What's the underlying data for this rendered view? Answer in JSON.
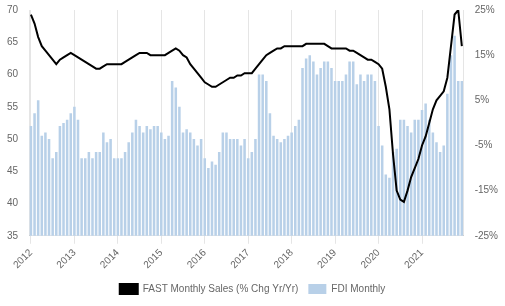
{
  "chart_data": {
    "type": "bar",
    "categories": [
      "2012",
      null,
      null,
      null,
      null,
      null,
      null,
      null,
      null,
      null,
      null,
      null,
      "2013",
      null,
      null,
      null,
      null,
      null,
      null,
      null,
      null,
      null,
      null,
      null,
      "2014",
      null,
      null,
      null,
      null,
      null,
      null,
      null,
      null,
      null,
      null,
      null,
      "2015",
      null,
      null,
      null,
      null,
      null,
      null,
      null,
      null,
      null,
      null,
      null,
      "2016",
      null,
      null,
      null,
      null,
      null,
      null,
      null,
      null,
      null,
      null,
      null,
      "2017",
      null,
      null,
      null,
      null,
      null,
      null,
      null,
      null,
      null,
      null,
      null,
      "2018",
      null,
      null,
      null,
      null,
      null,
      null,
      null,
      null,
      null,
      null,
      null,
      "2019",
      null,
      null,
      null,
      null,
      null,
      null,
      null,
      null,
      null,
      null,
      null,
      "2020",
      null,
      null,
      null,
      null,
      null,
      null,
      null,
      null,
      null,
      null,
      null,
      "2021",
      null,
      null,
      null,
      null,
      null,
      null,
      null,
      null,
      null,
      null,
      null
    ],
    "series": [
      {
        "name": "FDI Monthly",
        "type": "bar",
        "color": "#b8d0e8",
        "values": [
          52,
          54,
          56,
          50.5,
          51,
          50,
          47,
          48,
          52,
          52.5,
          53,
          54,
          55,
          53,
          47,
          47,
          48,
          47,
          48,
          48,
          51,
          49.5,
          50,
          47,
          47,
          47,
          48,
          49.5,
          51,
          53,
          52,
          51,
          52,
          51.5,
          52,
          52,
          51,
          50,
          50.5,
          59,
          58,
          55,
          51,
          51.5,
          51,
          50,
          49,
          50,
          47,
          45.5,
          46.5,
          46,
          48,
          51,
          51,
          50,
          50,
          50,
          49,
          50,
          47,
          48,
          50,
          60,
          60,
          59,
          54,
          50.5,
          50,
          49.5,
          50,
          50.5,
          51,
          52,
          53,
          61,
          62.5,
          63,
          62,
          60,
          61,
          62,
          62,
          61,
          59,
          59,
          59,
          60,
          62,
          62,
          58.5,
          60,
          59,
          60,
          60,
          59,
          52,
          49,
          44.5,
          44,
          48,
          48.5,
          53,
          53,
          52,
          51,
          53,
          53,
          54.5,
          55.5,
          53,
          51,
          49.5,
          48,
          49,
          57,
          63,
          66,
          59,
          59
        ]
      },
      {
        "name": "FAST Monthly Sales (% Chg Yr/Yr)",
        "type": "line",
        "axis": "y2",
        "color": "#000000",
        "values": [
          24,
          22,
          19,
          17,
          16,
          15,
          14,
          13,
          14,
          14.5,
          15,
          15.5,
          15,
          14.5,
          14,
          13.5,
          13,
          12.5,
          12,
          12,
          12.5,
          13,
          13,
          13,
          13,
          13,
          13.5,
          14,
          14.5,
          15,
          15.5,
          15.5,
          15.5,
          15,
          15,
          15,
          15,
          15,
          15.5,
          16,
          16.5,
          16,
          15,
          14.5,
          13,
          12,
          11,
          10,
          9,
          8.5,
          8,
          8,
          8.5,
          9,
          9.5,
          10,
          10,
          10.5,
          10.5,
          11,
          11,
          11,
          12,
          13,
          14,
          15,
          15.5,
          16,
          16.5,
          16.5,
          17,
          17,
          17,
          17,
          17,
          17,
          17.5,
          17.5,
          17.5,
          17.5,
          17.5,
          17.5,
          17,
          16.5,
          16.5,
          16.5,
          16.5,
          16.5,
          16,
          16,
          15.5,
          15,
          14.5,
          14,
          14,
          13.5,
          13,
          12,
          8,
          3,
          -7,
          -15,
          -17,
          -17.5,
          -15,
          -12,
          -10,
          -8,
          -5,
          -3,
          0,
          3,
          5,
          6,
          7,
          10,
          17,
          24,
          25,
          17
        ]
      }
    ],
    "ylim": [
      35,
      70
    ],
    "yticks": [
      35,
      40,
      45,
      50,
      55,
      60,
      65,
      70
    ],
    "y2lim": [
      -25,
      25
    ],
    "y2ticks": [
      {
        "value": -25,
        "label": "-25%"
      },
      {
        "value": -15,
        "label": "-15%"
      },
      {
        "value": -5,
        "label": "-5%"
      },
      {
        "value": 5,
        "label": "5%"
      },
      {
        "value": 15,
        "label": "15%"
      },
      {
        "value": 25,
        "label": "25%"
      }
    ],
    "grid": "x",
    "legend": "bottom"
  }
}
